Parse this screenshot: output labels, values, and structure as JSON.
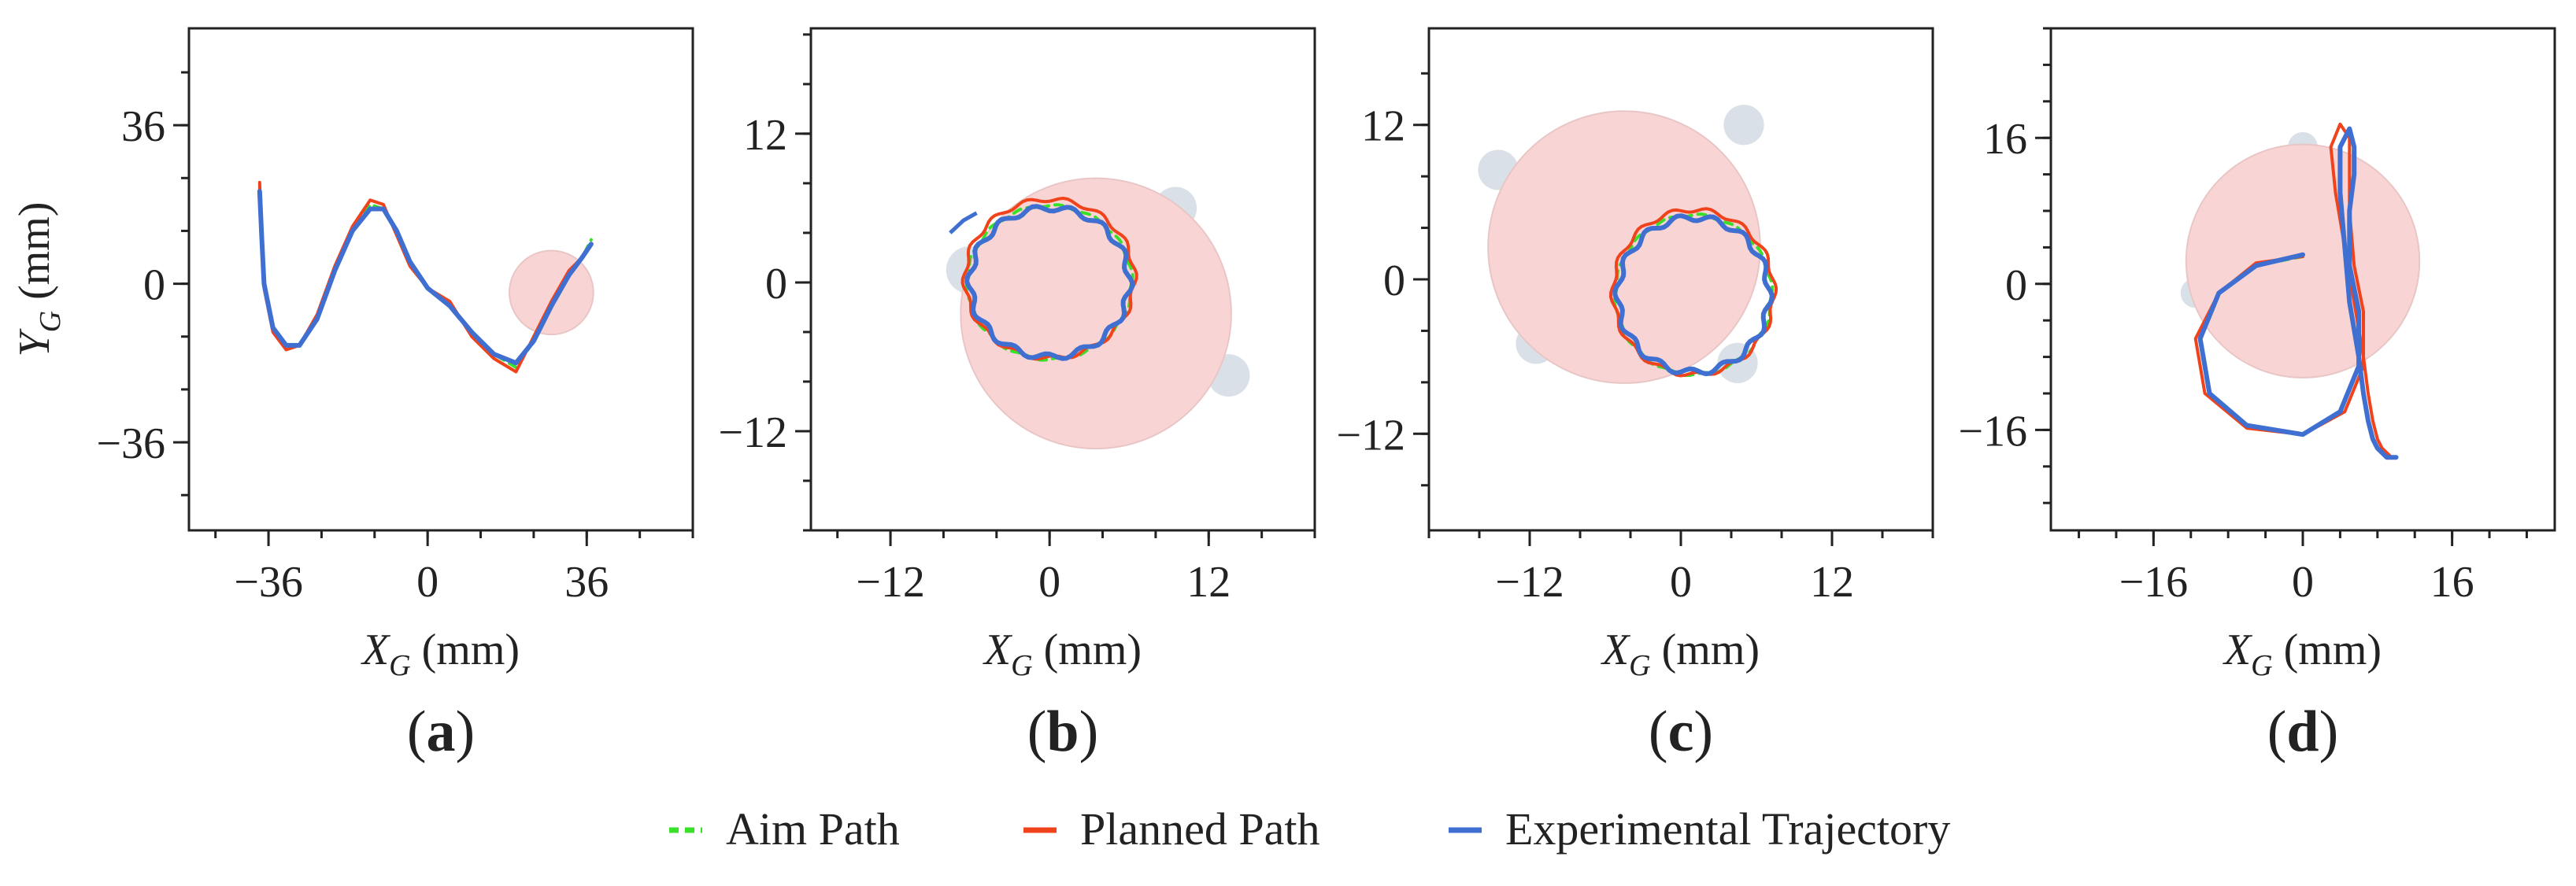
{
  "legend": [
    {
      "label": "Aim Path",
      "color": "#39e02a",
      "dash": true
    },
    {
      "label": "Planned Path",
      "color": "#f0431c",
      "dash": false
    },
    {
      "label": "Experimental Trajectory",
      "color": "#3f6fd0",
      "dash": false
    }
  ],
  "colors": {
    "obstacle": "#f9d4d4",
    "shadow": "#d5dde4",
    "frame": "#222222"
  },
  "chart_data": [
    {
      "type": "line",
      "panel_label": "(a)",
      "panel_letter": "a",
      "xlabel_var": "X",
      "xlabel_sub": "G",
      "xlabel_unit": " (mm)",
      "ylabel_var": "Y",
      "ylabel_sub": "G",
      "ylabel_unit": " (mm)",
      "xlim": [
        -54,
        60
      ],
      "ylim": [
        -56,
        58
      ],
      "xticks": [
        {
          "v": -36,
          "label": "−36"
        },
        {
          "v": 0,
          "label": "0"
        },
        {
          "v": 36,
          "label": "36"
        }
      ],
      "yticks": [
        {
          "v": 36,
          "label": "36"
        },
        {
          "v": 0,
          "label": "0"
        },
        {
          "v": -36,
          "label": "−36"
        }
      ],
      "minor_step": 12,
      "obstacles": [
        {
          "cx": 28,
          "cy": -2,
          "r": 9.5
        }
      ],
      "shadows": [],
      "series": [
        {
          "name": "Aim Path",
          "x": [
            -38,
            -37.5,
            -37,
            -35,
            -32,
            -29,
            -25,
            -21,
            -17,
            -13,
            -10,
            -7,
            -4,
            0,
            5,
            10,
            15,
            20,
            24,
            28,
            32,
            35,
            37
          ],
          "y": [
            22,
            10,
            0,
            -10,
            -14,
            -14,
            -8,
            3,
            12,
            18,
            17,
            12,
            5,
            -1,
            -5,
            -11,
            -16,
            -19,
            -13,
            -5,
            2,
            6,
            10
          ]
        },
        {
          "name": "Planned Path",
          "x": [
            -38,
            -37.5,
            -37,
            -35,
            -32,
            -29,
            -25,
            -21,
            -17,
            -13,
            -10,
            -7,
            -4,
            0,
            5,
            10,
            15,
            20,
            24,
            28,
            32,
            35,
            37
          ],
          "y": [
            23,
            9,
            -1,
            -11,
            -15,
            -14,
            -7,
            4,
            13,
            19,
            18,
            11,
            4,
            -1,
            -4,
            -12,
            -17,
            -20,
            -12,
            -4,
            3,
            6,
            9
          ]
        },
        {
          "name": "Experimental Trajectory",
          "x": [
            -38,
            -37.5,
            -37,
            -35,
            -32,
            -29,
            -25,
            -21,
            -17,
            -13,
            -10,
            -7,
            -4,
            0,
            5,
            10,
            15,
            20,
            24,
            28,
            32,
            35,
            37
          ],
          "y": [
            21,
            10,
            0,
            -10,
            -14,
            -14,
            -8,
            3,
            12,
            17,
            17,
            12,
            5,
            -1,
            -5,
            -11,
            -16,
            -18,
            -13,
            -5,
            2,
            6,
            9
          ]
        }
      ]
    },
    {
      "type": "line",
      "panel_label": "(b)",
      "panel_letter": "b",
      "xlabel_var": "X",
      "xlabel_sub": "G",
      "xlabel_unit": " (mm)",
      "xlim": [
        -18,
        20
      ],
      "ylim": [
        -20,
        20.5
      ],
      "xticks": [
        {
          "v": -12,
          "label": "−12"
        },
        {
          "v": 0,
          "label": "0"
        },
        {
          "v": 12,
          "label": "12"
        }
      ],
      "yticks": [
        {
          "v": 12,
          "label": "12"
        },
        {
          "v": 0,
          "label": "0"
        },
        {
          "v": -12,
          "label": "−12"
        }
      ],
      "minor_step": 4,
      "obstacles": [
        {
          "cx": 3.5,
          "cy": -2.5,
          "r": 10.2
        }
      ],
      "shadows": [
        {
          "cx": -6,
          "cy": 1,
          "r": 1.8
        },
        {
          "cx": 9.5,
          "cy": 6,
          "r": 1.6
        },
        {
          "cx": 13.5,
          "cy": -7.5,
          "r": 1.6
        }
      ],
      "series": [
        {
          "name": "Aim Path",
          "circle": {
            "cx": 0,
            "cy": 0,
            "r": 6.2
          }
        },
        {
          "name": "Planned Path",
          "circle": {
            "cx": 0,
            "cy": 0.3,
            "r": 6.4
          }
        },
        {
          "name": "Experimental Trajectory",
          "circle": {
            "cx": 0,
            "cy": 0,
            "r": 6.0
          },
          "tail": [
            [
              -7.5,
              4
            ],
            [
              -6.5,
              5
            ],
            [
              -5.5,
              5.6
            ]
          ]
        }
      ]
    },
    {
      "type": "line",
      "panel_label": "(c)",
      "panel_letter": "c",
      "xlabel_var": "X",
      "xlabel_sub": "G",
      "xlabel_unit": " (mm)",
      "xlim": [
        -20,
        20
      ],
      "ylim": [
        -19.5,
        19.5
      ],
      "xticks": [
        {
          "v": -12,
          "label": "−12"
        },
        {
          "v": 0,
          "label": "0"
        },
        {
          "v": 12,
          "label": "12"
        }
      ],
      "yticks": [
        {
          "v": 12,
          "label": "12"
        },
        {
          "v": 0,
          "label": "0"
        },
        {
          "v": -12,
          "label": "−12"
        }
      ],
      "minor_step": 4,
      "obstacles": [
        {
          "cx": -4.5,
          "cy": 2.5,
          "r": 10.8
        }
      ],
      "shadows": [
        {
          "cx": -14.5,
          "cy": 8.5,
          "r": 1.6
        },
        {
          "cx": 5,
          "cy": 12,
          "r": 1.6
        },
        {
          "cx": 4.5,
          "cy": -6.5,
          "r": 1.6
        },
        {
          "cx": -11.5,
          "cy": -5,
          "r": 1.6
        }
      ],
      "series": [
        {
          "name": "Aim Path",
          "circle": {
            "cx": 1,
            "cy": -1.2,
            "r": 6.2
          }
        },
        {
          "name": "Planned Path",
          "circle": {
            "cx": 1,
            "cy": -1.0,
            "r": 6.4
          }
        },
        {
          "name": "Experimental Trajectory",
          "circle": {
            "cx": 1,
            "cy": -1.2,
            "r": 6.0
          }
        }
      ]
    },
    {
      "type": "line",
      "panel_label": "(d)",
      "panel_letter": "d",
      "xlabel_var": "X",
      "xlabel_sub": "G",
      "xlabel_unit": " (mm)",
      "xlim": [
        -27,
        27
      ],
      "ylim": [
        -27,
        28
      ],
      "xticks": [
        {
          "v": -16,
          "label": "−16"
        },
        {
          "v": 0,
          "label": "0"
        },
        {
          "v": 16,
          "label": "16"
        }
      ],
      "yticks": [
        {
          "v": 16,
          "label": "16"
        },
        {
          "v": 0,
          "label": "0"
        },
        {
          "v": -16,
          "label": "−16"
        }
      ],
      "minor_step": 4,
      "obstacles": [
        {
          "cx": 0,
          "cy": 2.5,
          "r": 12.5
        }
      ],
      "shadows": [
        {
          "cx": -11.5,
          "cy": -1,
          "r": 1.6
        },
        {
          "cx": 0,
          "cy": 15,
          "r": 1.6
        }
      ],
      "series": [
        {
          "name": "Aim Path",
          "x": [
            0,
            -5,
            -9,
            -11,
            -10,
            -6,
            0,
            4,
            6,
            6,
            5,
            5,
            5.5,
            5.5,
            5,
            4,
            4,
            4.5,
            5,
            6,
            6.5,
            7,
            7.5,
            8,
            8.5,
            9,
            10
          ],
          "y": [
            3,
            2,
            -1,
            -6,
            -12,
            -15.5,
            -16.5,
            -14,
            -9,
            -3,
            2,
            8,
            12,
            15,
            17,
            15,
            10,
            4,
            -2,
            -8,
            -12,
            -15,
            -17,
            -18,
            -18.5,
            -19,
            -19
          ]
        },
        {
          "name": "Planned Path",
          "x": [
            0,
            -5,
            -9,
            -11.5,
            -10.5,
            -6,
            0,
            4.5,
            6.5,
            6.5,
            5.5,
            5,
            5,
            5,
            4,
            3,
            3.5,
            4.5,
            5.5,
            6.5,
            7,
            7.5,
            8,
            8.5,
            9,
            9.5,
            10
          ],
          "y": [
            3,
            2.3,
            -1,
            -6,
            -12,
            -15.8,
            -16.5,
            -14,
            -9,
            -3,
            2,
            8,
            12,
            16,
            17.5,
            15,
            10,
            4,
            -2,
            -8,
            -12,
            -15,
            -17,
            -18,
            -18.5,
            -19,
            -19
          ]
        },
        {
          "name": "Experimental Trajectory",
          "x": [
            0,
            -5,
            -9,
            -11,
            -10,
            -6,
            0,
            4,
            6,
            6,
            5,
            5,
            5.5,
            5.5,
            5,
            4,
            4,
            4.5,
            5,
            6,
            6.5,
            7,
            7.5,
            8,
            8.5,
            9,
            10
          ],
          "y": [
            3.2,
            2,
            -1,
            -6,
            -12,
            -15.5,
            -16.5,
            -14,
            -9,
            -3,
            2,
            8,
            12,
            15,
            17,
            15,
            10,
            4,
            -2,
            -8,
            -12,
            -15,
            -17,
            -18,
            -18.5,
            -19,
            -19
          ]
        }
      ]
    }
  ]
}
